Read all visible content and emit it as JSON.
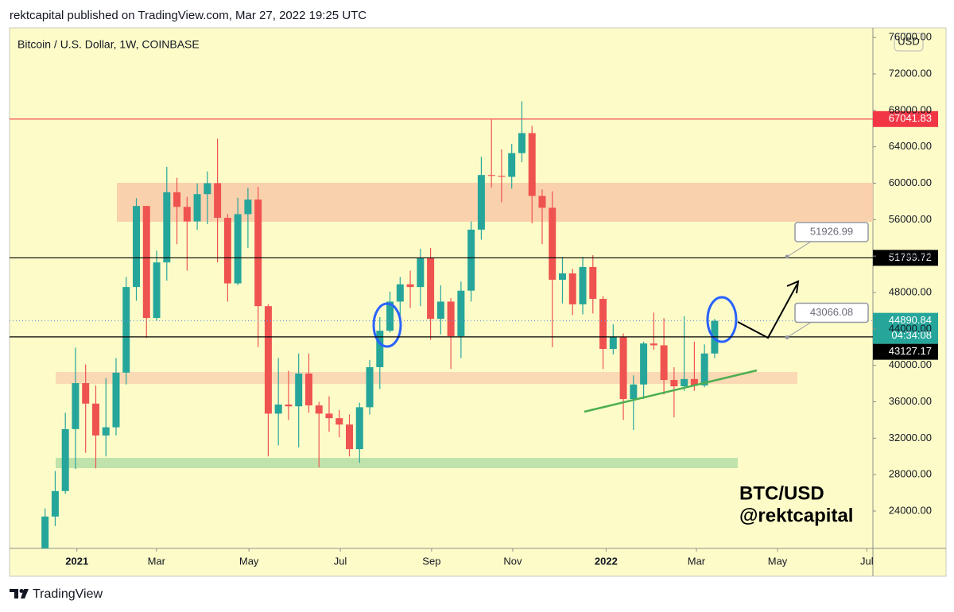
{
  "header": "rektcapital published on TradingView.com, Mar 27, 2022 19:25 UTC",
  "footer": "TradingView",
  "chart_data": {
    "type": "candlestick",
    "title": "Bitcoin / U.S. Dollar, 1W, COINBASE",
    "currency": "USD",
    "up_color": "#26a69a",
    "down_color": "#ef5350",
    "open": [
      19300,
      23400,
      26200,
      33000,
      38050,
      35800,
      32300,
      33200,
      39200,
      48600,
      57500,
      45200,
      51300,
      59000,
      57400,
      55800,
      58800,
      60000,
      56200,
      49000,
      56600,
      58200,
      46500,
      34700,
      35700,
      35500,
      39100,
      35600,
      34700,
      34200,
      33500,
      30800,
      35400,
      39800,
      43800,
      47000,
      48900,
      48600,
      51800,
      45100,
      47000,
      43200,
      48200,
      54900,
      60900,
      60800,
      60700,
      63300,
      65500,
      58600,
      57300,
      49400,
      50100,
      46700,
      50800,
      47300,
      41800,
      43100,
      36300,
      37900,
      42400,
      42200,
      38400,
      37700,
      38500,
      37800,
      41300
    ],
    "high": [
      24300,
      28400,
      34800,
      41950,
      40100,
      37800,
      38600,
      40800,
      49700,
      58350,
      57500,
      52600,
      61800,
      60600,
      58500,
      60000,
      61300,
      64900,
      56600,
      58400,
      59500,
      59600,
      46700,
      40800,
      39400,
      41300,
      41300,
      36000,
      36600,
      35100,
      34600,
      35900,
      40600,
      45300,
      48100,
      49700,
      50400,
      52800,
      52900,
      48800,
      47400,
      49200,
      55800,
      62900,
      67000,
      63700,
      64300,
      69000,
      66300,
      59300,
      59100,
      51900,
      50600,
      51900,
      52100,
      47600,
      44500,
      43500,
      38900,
      42600,
      45800,
      45200,
      39800,
      45400,
      42600,
      42300,
      45100
    ],
    "low": [
      19000,
      22350,
      25900,
      28600,
      30400,
      28700,
      30000,
      32300,
      37900,
      47100,
      43000,
      44900,
      49300,
      53300,
      50400,
      54900,
      55500,
      51300,
      47000,
      48800,
      52900,
      42000,
      30000,
      31200,
      34000,
      31000,
      34800,
      28800,
      32700,
      32100,
      30000,
      29300,
      34600,
      37400,
      43600,
      44300,
      46300,
      46500,
      42800,
      43400,
      39600,
      40800,
      47000,
      53800,
      59500,
      57900,
      59400,
      62300,
      55600,
      53300,
      42000,
      46800,
      45500,
      45600,
      45700,
      39600,
      41200,
      34000,
      32900,
      36300,
      41700,
      36800,
      34300,
      37200,
      37200,
      37600,
      40800
    ],
    "close": [
      23400,
      26200,
      33000,
      38050,
      35800,
      32300,
      33200,
      39200,
      48600,
      57500,
      45200,
      51300,
      59000,
      57400,
      55800,
      58800,
      60000,
      56200,
      49000,
      56600,
      58200,
      46500,
      34700,
      35700,
      35500,
      39100,
      35600,
      34700,
      34200,
      33500,
      30800,
      35400,
      39800,
      43800,
      47000,
      48900,
      48600,
      51800,
      45100,
      47000,
      43200,
      48200,
      54900,
      60900,
      60800,
      60700,
      63300,
      65500,
      58600,
      57300,
      49400,
      50100,
      46700,
      50800,
      47300,
      41800,
      43100,
      36300,
      37900,
      42400,
      42200,
      38400,
      37700,
      38500,
      37800,
      41300,
      44890.84
    ],
    "xlim": [
      -3.5,
      81.6
    ],
    "xticks": [
      {
        "value": 3.14,
        "label": "2021"
      },
      {
        "value": 10.98,
        "label": "Mar"
      },
      {
        "value": 20.1,
        "label": "May"
      },
      {
        "value": 29.1,
        "label": "Jul"
      },
      {
        "value": 38.1,
        "label": "Sep"
      },
      {
        "value": 46.1,
        "label": "Nov"
      },
      {
        "value": 55.3,
        "label": "2022"
      },
      {
        "value": 64.2,
        "label": "Mar"
      },
      {
        "value": 72.2,
        "label": "May"
      },
      {
        "value": 81.0,
        "label": "Jul"
      }
    ],
    "ylim": [
      19900,
      77060
    ],
    "yticks": [
      {
        "value": 24000,
        "label": "24000.00"
      },
      {
        "value": 28000,
        "label": "28000.00"
      },
      {
        "value": 32000,
        "label": "32000.00"
      },
      {
        "value": 36000,
        "label": "36000.00"
      },
      {
        "value": 40000,
        "label": "40000.00"
      },
      {
        "value": 44000,
        "label": "44000.00"
      },
      {
        "value": 48000,
        "label": "48000.00"
      },
      {
        "value": 52000,
        "label": "52000.00"
      },
      {
        "value": 56000,
        "label": "56000.00"
      },
      {
        "value": 60000,
        "label": "60000.00"
      },
      {
        "value": 64000,
        "label": "64000.00"
      },
      {
        "value": 68000,
        "label": "68000.00"
      },
      {
        "value": 72000,
        "label": "72000.00"
      },
      {
        "value": 76000,
        "label": "76000.00"
      }
    ],
    "levels": [
      {
        "value": 67041.83,
        "color": "#f23645"
      },
      {
        "value": 51799.72,
        "color": "#000000"
      },
      {
        "value": 43127.17,
        "color": "#000000"
      }
    ],
    "last": {
      "value": 44890.84,
      "countdown": "04:34:08",
      "color": "#26a69a"
    },
    "callouts": [
      51926.99,
      43066.08
    ],
    "watermark": [
      "BTC/USD",
      "@rektcapital"
    ]
  }
}
